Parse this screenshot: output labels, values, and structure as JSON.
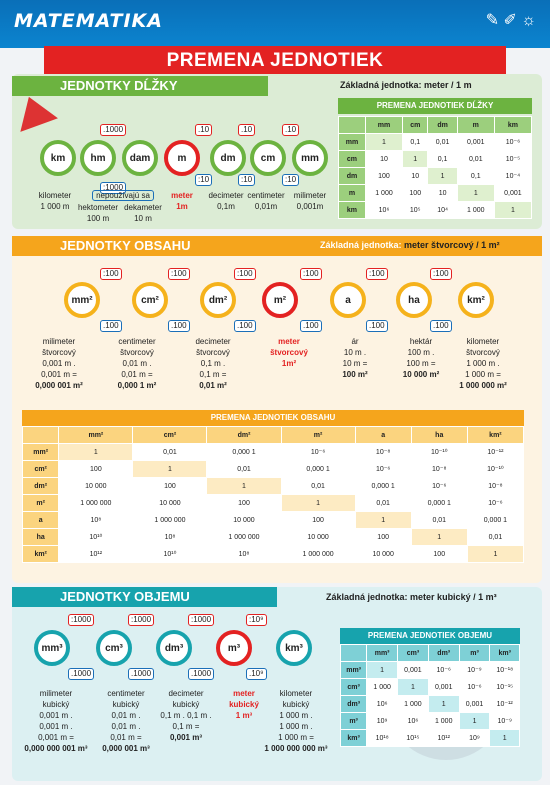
{
  "header": {
    "title": "MATEMATIKA",
    "banner": "PREMENA JEDNOTIEK"
  },
  "length": {
    "title": "JEDNOTKY DĹŽKY",
    "base_label": "Základná jednotka:",
    "base_value": "meter / 1 m",
    "units": [
      "km",
      "hm",
      "dam",
      "m",
      "dm",
      "cm",
      "mm"
    ],
    "conv_mul": ":1000",
    "conv_div": ".1000",
    "conv10a": ".10",
    "conv10b": ":10",
    "labels": {
      "km_name": "kilometer",
      "km_val": "1 000 m",
      "unused": "nepoužívajú sa",
      "hm_name": "hektometer",
      "hm_val": "100 m",
      "dam_name": "dekameter",
      "dam_val": "10 m",
      "m_name": "meter",
      "m_val": "1m",
      "dm_name": "decimeter",
      "dm_val": "0,1m",
      "cm_name": "centimeter",
      "cm_val": "0,01m",
      "mm_name": "milimeter",
      "mm_val": "0,001m"
    },
    "table_title": "PREMENA JEDNOTIEK DĹŽKY",
    "table_cols": [
      "",
      "mm",
      "cm",
      "dm",
      "m",
      "km"
    ],
    "table_rows": [
      [
        "mm",
        "1",
        "0,1",
        "0,01",
        "0,001",
        "10⁻⁶"
      ],
      [
        "cm",
        "10",
        "1",
        "0,1",
        "0,01",
        "10⁻⁵"
      ],
      [
        "dm",
        "100",
        "10",
        "1",
        "0,1",
        "10⁻⁴"
      ],
      [
        "m",
        "1 000",
        "100",
        "10",
        "1",
        "0,001"
      ],
      [
        "km",
        "10⁶",
        "10⁵",
        "10⁴",
        "1 000",
        "1"
      ]
    ]
  },
  "area": {
    "title": "JEDNOTKY OBSAHU",
    "base_label": "Základná jednotka:",
    "base_value": "meter štvorcový / 1 m²",
    "units": [
      "mm²",
      "cm²",
      "dm²",
      "m²",
      "a",
      "ha",
      "km²"
    ],
    "conv_div": ":100",
    "conv_mul": ".100",
    "labels": [
      [
        "milimeter",
        "štvorcový",
        "0,001 m .",
        "0,001 m =",
        "0,000 001 m²"
      ],
      [
        "centimeter",
        "štvorcový",
        "0,01 m .",
        "0,01 m =",
        "0,000 1 m²"
      ],
      [
        "decimeter",
        "štvorcový",
        "0,1 m .",
        "0,1 m =",
        "0,01 m²"
      ],
      [
        "meter",
        "štvorcový",
        "1m²",
        "",
        ""
      ],
      [
        "ár",
        "10 m .",
        "10 m =",
        "100 m²",
        ""
      ],
      [
        "hektár",
        "100 m .",
        "100 m =",
        "10 000 m²",
        ""
      ],
      [
        "kilometer",
        "štvorcový",
        "1 000 m .",
        "1 000 m =",
        "1 000 000 m²"
      ]
    ],
    "table_title": "PREMENA JEDNOTIEK OBSAHU",
    "table_cols": [
      "",
      "mm²",
      "cm²",
      "dm²",
      "m²",
      "a",
      "ha",
      "km²"
    ],
    "table_rows": [
      [
        "mm²",
        "1",
        "0,01",
        "0,000 1",
        "10⁻⁶",
        "10⁻⁸",
        "10⁻¹⁰",
        "10⁻¹²"
      ],
      [
        "cm²",
        "100",
        "1",
        "0,01",
        "0,000 1",
        "10⁻⁶",
        "10⁻⁸",
        "10⁻¹⁰"
      ],
      [
        "dm²",
        "10 000",
        "100",
        "1",
        "0,01",
        "0,000 1",
        "10⁻⁶",
        "10⁻⁸"
      ],
      [
        "m²",
        "1 000 000",
        "10 000",
        "100",
        "1",
        "0,01",
        "0,000 1",
        "10⁻⁶"
      ],
      [
        "a",
        "10⁸",
        "1 000 000",
        "10 000",
        "100",
        "1",
        "0,01",
        "0,000 1"
      ],
      [
        "ha",
        "10¹⁰",
        "10⁸",
        "1 000 000",
        "10 000",
        "100",
        "1",
        "0,01"
      ],
      [
        "km²",
        "10¹²",
        "10¹⁰",
        "10⁸",
        "1 000 000",
        "10 000",
        "100",
        "1"
      ]
    ]
  },
  "volume": {
    "title": "JEDNOTKY OBJEMU",
    "base_label": "Základná jednotka:",
    "base_value": "meter kubický / 1 m³",
    "units": [
      "mm³",
      "cm³",
      "dm³",
      "m³",
      "km³"
    ],
    "conv_div": ":1000",
    "conv_mul": ".1000",
    "conv9a": ":10⁹",
    "conv9b": ".10⁹",
    "labels": [
      [
        "milimeter",
        "kubický",
        "0,001 m .",
        "0,001 m .",
        "0,001 m =",
        "0,000 000 001 m³"
      ],
      [
        "centimeter",
        "kubický",
        "0,01 m .",
        "0,01 m .",
        "0,01 m =",
        "0,000 001 m³"
      ],
      [
        "decimeter",
        "kubický",
        "0,1 m . 0,1 m .",
        "0,1 m =",
        "0,001 m³",
        ""
      ],
      [
        "meter",
        "kubický",
        "1 m³",
        "",
        "",
        ""
      ],
      [
        "kilometer",
        "kubický",
        "1 000 m .",
        "1 000 m .",
        "1 000 m =",
        "1 000 000 000 m³"
      ]
    ],
    "table_title": "PREMENA JEDNOTIEK OBJEMU",
    "table_cols": [
      "",
      "mm³",
      "cm³",
      "dm³",
      "m³",
      "km³"
    ],
    "table_rows": [
      [
        "mm³",
        "1",
        "0,001",
        "10⁻⁶",
        "10⁻⁹",
        "10⁻¹⁸"
      ],
      [
        "cm³",
        "1 000",
        "1",
        "0,001",
        "10⁻⁶",
        "10⁻¹⁵"
      ],
      [
        "dm³",
        "10⁶",
        "1 000",
        "1",
        "0,001",
        "10⁻¹²"
      ],
      [
        "m³",
        "10⁹",
        "10⁶",
        "1 000",
        "1",
        "10⁻⁹"
      ],
      [
        "km³",
        "10¹⁸",
        "10¹⁵",
        "10¹²",
        "10⁹",
        "1"
      ]
    ]
  }
}
